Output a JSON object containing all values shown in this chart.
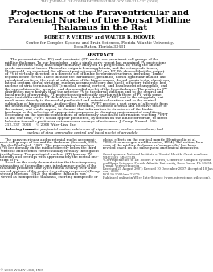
{
  "journal_header": "THE JOURNAL OF COMPARATIVE NEUROLOGY 508:212-237 (2008)",
  "title_line1": "Projections of the Paraventricular and",
  "title_line2": "Paratenial Nuclei of the Dorsal Midline",
  "title_line3": "Thalamus in the Rat",
  "authors": "ROBERT P. VERTES* and WALTER B. HOOVER",
  "affiliation_line1": "Center for Complex Systems and Brain Sciences, Florida Atlantic University,",
  "affiliation_line2": "Boca Raton, Florida 33431",
  "abstract_title": "ABSTRACT",
  "abstract_lines": [
    "     The paraventricular (PV) and paratenial (PT) nuclei are prominent cell groups of the",
    "midline thalamus. To our knowledge, only a single early report has examined PV projections",
    "and no previous study has comprehensively analyzed PT projections. By using the antero-",
    "grade anatomical tracer, Phaseolus vulgaris leucoagglutinin, and the retrograde tracer,",
    "Fluorogold, we examined the efferent projections of PV and PT. We showed that the output",
    "of PV is virtually directed to a discrete set of limbic forebrain structures, including ‘limbic’",
    "regions of the cortex. These include the infralimbic, prelimbic, dorsal agranular insular, and",
    "entorhinal cortices, the ventral subiculum of the hippocampus, dorsal taenia tecta, claustrum,",
    "lateral septum, dorsal striatum, nucleus accumbens (core and shell), olfactory tubercle, bed",
    "nucleus of stria terminalis (BST): medial, central, cortical, and basal nuclei of amygdala, and",
    "the suprachiasmatic, arcuate, and dorsomedial nuclei of the hypothalamus. The posterior PV",
    "distributes more heavily than the anterior PV to the dorsal striatum and to the central and",
    "basal nuclei of amygdala. PT projections significantly overlap with those of PV, with some",
    "important differences. PT distributes less heavily than PV to BST and to the amygdala, but",
    "much more densely to the medial prefrontal and entorhinal cortices and to the ventral",
    "subiculum of hippocampus. As described herein, PV/PT receive a vast array of afferents from",
    "the brainstem, hypothalamus, and limbic forebrain, related to arousal and attentive states of",
    "the animal, and would appear to channel that information to structures of the limbic",
    "forebrain in the selection of appropriate responses to changing environmental conditions.",
    "Depending on the specific complement of emotionally associated information reaching PV/PT",
    "at any one time, PV/PT would appear positioned, by actions on the limbic forebrain, to direct",
    "behavior toward a particular outcome over a range of outcomes. J. Comp. Neurol. 508:",
    "212–237, 2008.    © 2008 Wiley-Liss, Inc."
  ],
  "indexing_bold": "Indexing terms:",
  "indexing_italic": " medial prefrontal cortex; subiculum of hippocampus; nucleus accumbens; bed",
  "indexing_italic2": "nucleus of stria terminalis; central and basal nuclei of amygdala",
  "col1_lines": [
    "     The paraventricular and paratenial nuclei are promi-",
    "nent cell groups of the midline thalamus (Sneason, 1999;",
    "Van der Werf et al., 2002). The paraventricular nucleus",
    "(PV) lies dorsally on the midline directly below the third",
    "ventricle and extends rostrocaudally virtually throughout",
    "the thalamus. The paratenial nucleus (PT) borders PV",
    "laterally and overlaps with approximately the rostral one-",
    "third of PV.",
    "     Based on the early demonstration that low-frequency",
    "stimulation of the midline and intralaminar nuclei of the",
    "thalamus produced slow synchronous activity over wide-",
    "spread regions of the cortex (recruiting responses) (Demp-",
    "sey and Morison, 1942), the midline thalamus was",
    "viewed as ‘nonspecific’ thalamus, exerting nonspecific or"
  ],
  "col2_lines": [
    "global effects on the cortical mantle (Bentivoglio et al.,",
    "1993; Groenewegen and Berendse, 1994). The notion, how-",
    "ever, of the midline thalamus as ‘nonspecific’ has been",
    "revised based on the subsequent anatomical demonstra-"
  ],
  "fn1_lines": [
    "Grant sponsor: National Institute of Mental Health; Grant numbers:",
    "MH62589, MH63519."
  ],
  "fn2_lines": [
    "*Correspondence to Dr. Robert P. Vertes, Center for Complex Systems",
    "and Brain Sciences, Florida Atlantic University, Boca Raton, FL 33431.",
    "E-mail: Vertes@fau.edu"
  ],
  "fn3_lines": [
    "Received 29 August 2007; Revised 10 December 2007; Accepted 10 Jan-",
    "uary 2008"
  ],
  "doi": "DOI 10.1002/cne.21679",
  "online": "Published online in Wiley InterScience (www.interscience.wiley.com).",
  "copyright": "© 2008 WILEY-LISS, INC.",
  "bg_color": "#ffffff"
}
